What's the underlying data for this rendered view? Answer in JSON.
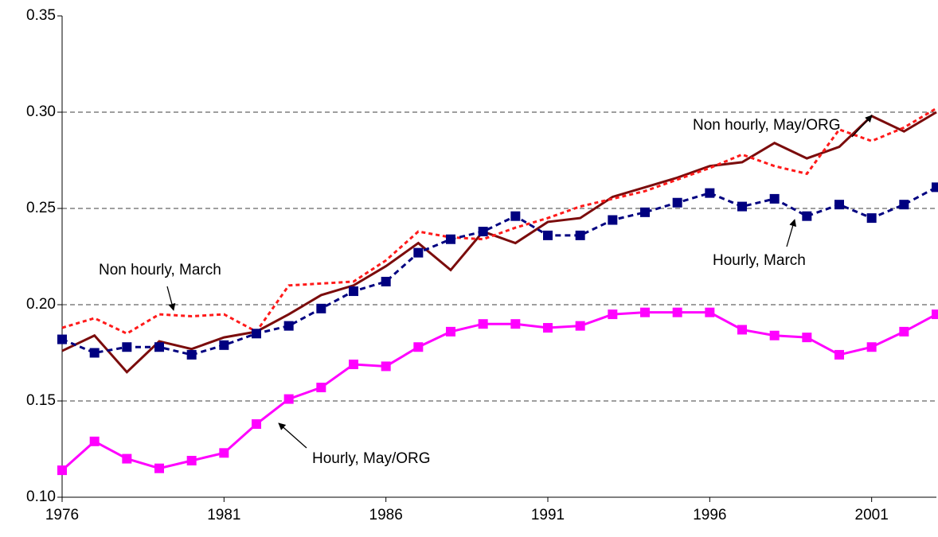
{
  "chart_data": {
    "type": "line",
    "x": [
      1976,
      1977,
      1978,
      1979,
      1980,
      1981,
      1982,
      1983,
      1984,
      1985,
      1986,
      1987,
      1988,
      1989,
      1990,
      1991,
      1992,
      1993,
      1994,
      1995,
      1996,
      1997,
      1998,
      1999,
      2000,
      2001,
      2002,
      2003
    ],
    "xlim": [
      1976,
      2003
    ],
    "xticks": [
      1976,
      1981,
      1986,
      1991,
      1996,
      2001
    ],
    "ylim": [
      0.1,
      0.35
    ],
    "yticks": [
      {
        "value": 0.1,
        "label": "0.10"
      },
      0.15,
      {
        "value": 0.2,
        "label": "0.20"
      },
      0.25,
      {
        "value": 0.3,
        "label": "0.30"
      },
      0.35
    ],
    "grid": true,
    "series": [
      {
        "name": "Non hourly, May/ORG",
        "color": "#7b0c0c",
        "style": "solid",
        "marker": "none",
        "values": [
          0.176,
          0.184,
          0.165,
          0.181,
          0.177,
          0.183,
          0.186,
          0.195,
          0.205,
          0.21,
          0.22,
          0.232,
          0.218,
          0.238,
          0.232,
          0.243,
          0.245,
          0.256,
          0.261,
          0.266,
          0.272,
          0.274,
          0.284,
          0.276,
          0.282,
          0.298,
          0.29,
          0.3
        ]
      },
      {
        "name": "Non hourly, March",
        "color": "#ff1a1a",
        "style": "dotted",
        "marker": "none",
        "values": [
          0.188,
          0.193,
          0.185,
          0.195,
          0.194,
          0.195,
          0.186,
          0.21,
          0.211,
          0.212,
          0.223,
          0.238,
          0.235,
          0.234,
          0.24,
          0.245,
          0.251,
          0.255,
          0.259,
          0.265,
          0.271,
          0.278,
          0.272,
          0.268,
          0.291,
          0.285,
          0.292,
          0.302
        ]
      },
      {
        "name": "Hourly, March",
        "color": "#000080",
        "style": "dashed",
        "marker": "square",
        "values": [
          0.182,
          0.175,
          0.178,
          0.178,
          0.174,
          0.179,
          0.185,
          0.189,
          0.198,
          0.207,
          0.212,
          0.227,
          0.234,
          0.238,
          0.246,
          0.236,
          0.236,
          0.244,
          0.248,
          0.253,
          0.258,
          0.251,
          0.255,
          0.246,
          0.252,
          0.245,
          0.252,
          0.261
        ]
      },
      {
        "name": "Hourly, May/ORG",
        "color": "#ff00ff",
        "style": "solid",
        "marker": "square",
        "values": [
          0.114,
          0.129,
          0.12,
          0.115,
          0.119,
          0.123,
          0.138,
          0.151,
          0.157,
          0.169,
          0.168,
          0.178,
          0.186,
          0.19,
          0.19,
          0.188,
          0.189,
          0.195,
          0.196,
          0.196,
          0.196,
          0.187,
          0.184,
          0.183,
          0.174,
          0.178,
          0.186,
          0.195
        ]
      }
    ]
  }
}
